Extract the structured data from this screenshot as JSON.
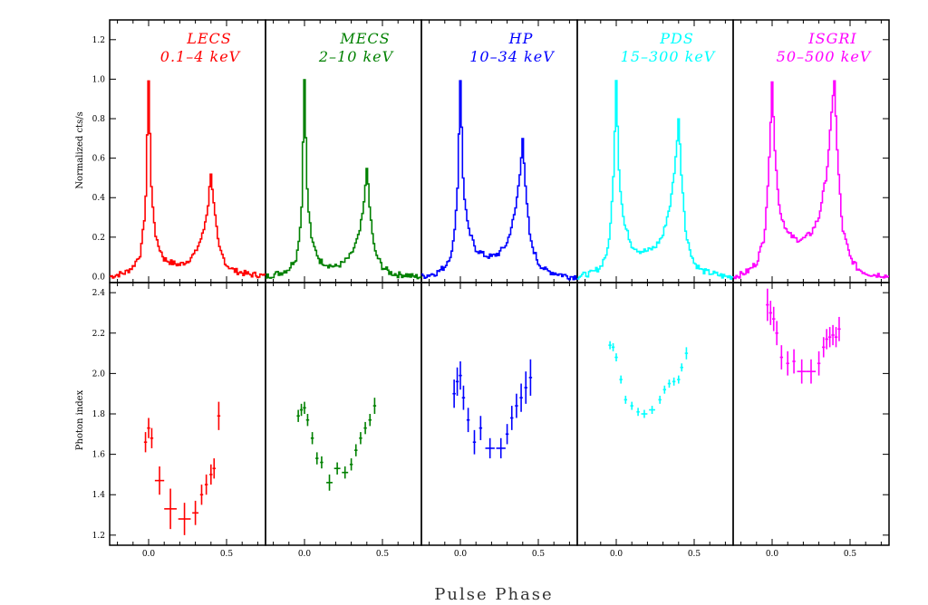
{
  "figure": {
    "xlabel": "Pulse Phase"
  },
  "chart_data": [
    {
      "type": "line",
      "role": "pulse-profiles",
      "ylabel": "Normalized cts/s",
      "ylim": [
        -0.03,
        1.3
      ],
      "xlim": [
        -0.25,
        0.75
      ],
      "xticks": [
        "0.0",
        "0.5"
      ],
      "yticks": [
        "0.0",
        "0.2",
        "0.4",
        "0.6",
        "0.8",
        "1.0",
        "1.2"
      ],
      "series": [
        {
          "name": "LECS",
          "band": "0.1–4 keV",
          "color": "#ff0000",
          "peak2_height": 0.53,
          "valley": 0.06,
          "x": [
            -0.25,
            -0.2,
            -0.15,
            -0.1,
            -0.05,
            -0.02,
            0.0,
            0.02,
            0.05,
            0.1,
            0.15,
            0.2,
            0.25,
            0.3,
            0.35,
            0.38,
            0.4,
            0.42,
            0.45,
            0.5,
            0.55,
            0.6,
            0.65,
            0.7,
            0.75
          ],
          "y": [
            0.0,
            0.01,
            0.02,
            0.05,
            0.12,
            0.35,
            1.0,
            0.4,
            0.18,
            0.09,
            0.07,
            0.06,
            0.08,
            0.12,
            0.22,
            0.35,
            0.53,
            0.35,
            0.15,
            0.06,
            0.03,
            0.02,
            0.01,
            0.01,
            0.0
          ]
        },
        {
          "name": "MECS",
          "band": "2–10 keV",
          "color": "#008000",
          "peak2_height": 0.56,
          "valley": 0.05,
          "x": [
            -0.25,
            -0.2,
            -0.15,
            -0.1,
            -0.05,
            -0.02,
            0.0,
            0.02,
            0.05,
            0.1,
            0.15,
            0.2,
            0.25,
            0.3,
            0.35,
            0.38,
            0.4,
            0.42,
            0.45,
            0.5,
            0.55,
            0.6,
            0.65,
            0.7,
            0.75
          ],
          "y": [
            0.0,
            0.01,
            0.02,
            0.04,
            0.1,
            0.3,
            1.0,
            0.38,
            0.17,
            0.08,
            0.06,
            0.05,
            0.07,
            0.11,
            0.21,
            0.35,
            0.56,
            0.33,
            0.13,
            0.05,
            0.02,
            0.01,
            0.01,
            0.0,
            0.0
          ]
        },
        {
          "name": "HP",
          "band": "10–34 keV",
          "color": "#0000ff",
          "peak2_height": 0.71,
          "valley": 0.1,
          "x": [
            -0.25,
            -0.2,
            -0.15,
            -0.1,
            -0.05,
            -0.02,
            0.0,
            0.02,
            0.05,
            0.1,
            0.15,
            0.2,
            0.25,
            0.3,
            0.35,
            0.38,
            0.4,
            0.42,
            0.45,
            0.5,
            0.55,
            0.6,
            0.65,
            0.7,
            0.75
          ],
          "y": [
            0.0,
            0.01,
            0.02,
            0.05,
            0.13,
            0.4,
            1.0,
            0.45,
            0.24,
            0.14,
            0.11,
            0.1,
            0.12,
            0.17,
            0.32,
            0.5,
            0.71,
            0.42,
            0.18,
            0.07,
            0.03,
            0.02,
            0.01,
            0.0,
            0.0
          ]
        },
        {
          "name": "PDS",
          "band": "15–300 keV",
          "color": "#00ffff",
          "peak2_height": 0.8,
          "valley": 0.13,
          "x": [
            -0.25,
            -0.2,
            -0.15,
            -0.1,
            -0.05,
            -0.02,
            0.0,
            0.02,
            0.05,
            0.1,
            0.15,
            0.2,
            0.25,
            0.3,
            0.35,
            0.38,
            0.4,
            0.42,
            0.45,
            0.5,
            0.55,
            0.6,
            0.65,
            0.7,
            0.75
          ],
          "y": [
            0.0,
            0.01,
            0.02,
            0.05,
            0.14,
            0.45,
            1.0,
            0.5,
            0.27,
            0.16,
            0.13,
            0.13,
            0.15,
            0.21,
            0.38,
            0.58,
            0.8,
            0.5,
            0.2,
            0.07,
            0.03,
            0.02,
            0.01,
            0.0,
            0.0
          ]
        },
        {
          "name": "ISGRI",
          "band": "50–500 keV",
          "color": "#ff00ff",
          "peak2_height": 1.0,
          "valley": 0.19,
          "x": [
            -0.25,
            -0.2,
            -0.15,
            -0.1,
            -0.05,
            -0.02,
            0.0,
            0.02,
            0.05,
            0.1,
            0.15,
            0.2,
            0.25,
            0.3,
            0.35,
            0.38,
            0.4,
            0.42,
            0.45,
            0.5,
            0.55,
            0.6,
            0.65,
            0.7,
            0.75
          ],
          "y": [
            0.0,
            0.01,
            0.03,
            0.07,
            0.2,
            0.55,
            1.0,
            0.6,
            0.33,
            0.22,
            0.19,
            0.19,
            0.22,
            0.3,
            0.52,
            0.8,
            1.0,
            0.6,
            0.25,
            0.1,
            0.04,
            0.02,
            0.01,
            0.01,
            0.0
          ]
        }
      ]
    },
    {
      "type": "scatter",
      "role": "photon-index",
      "ylabel": "Photon index",
      "ylim": [
        1.15,
        2.45
      ],
      "xlim": [
        -0.25,
        0.75
      ],
      "xticks": [
        "0.0",
        "0.5"
      ],
      "yticks": [
        "1.2",
        "1.4",
        "1.6",
        "1.8",
        "2.0",
        "2.2",
        "2.4"
      ],
      "series": [
        {
          "name": "LECS",
          "color": "#ff0000",
          "points": [
            {
              "x": -0.02,
              "y": 1.66,
              "xe": 0.01,
              "ye": 0.05
            },
            {
              "x": 0.0,
              "y": 1.73,
              "xe": 0.01,
              "ye": 0.05
            },
            {
              "x": 0.02,
              "y": 1.68,
              "xe": 0.01,
              "ye": 0.05
            },
            {
              "x": 0.07,
              "y": 1.47,
              "xe": 0.03,
              "ye": 0.07
            },
            {
              "x": 0.14,
              "y": 1.33,
              "xe": 0.04,
              "ye": 0.1
            },
            {
              "x": 0.23,
              "y": 1.28,
              "xe": 0.04,
              "ye": 0.08
            },
            {
              "x": 0.3,
              "y": 1.31,
              "xe": 0.02,
              "ye": 0.06
            },
            {
              "x": 0.34,
              "y": 1.4,
              "xe": 0.01,
              "ye": 0.05
            },
            {
              "x": 0.37,
              "y": 1.45,
              "xe": 0.01,
              "ye": 0.05
            },
            {
              "x": 0.4,
              "y": 1.5,
              "xe": 0.01,
              "ye": 0.05
            },
            {
              "x": 0.42,
              "y": 1.53,
              "xe": 0.01,
              "ye": 0.05
            },
            {
              "x": 0.45,
              "y": 1.79,
              "xe": 0.01,
              "ye": 0.07
            }
          ]
        },
        {
          "name": "MECS",
          "color": "#008000",
          "points": [
            {
              "x": -0.04,
              "y": 1.79,
              "xe": 0.01,
              "ye": 0.03
            },
            {
              "x": -0.02,
              "y": 1.82,
              "xe": 0.01,
              "ye": 0.03
            },
            {
              "x": 0.0,
              "y": 1.83,
              "xe": 0.01,
              "ye": 0.03
            },
            {
              "x": 0.02,
              "y": 1.77,
              "xe": 0.01,
              "ye": 0.03
            },
            {
              "x": 0.05,
              "y": 1.68,
              "xe": 0.01,
              "ye": 0.03
            },
            {
              "x": 0.08,
              "y": 1.58,
              "xe": 0.01,
              "ye": 0.03
            },
            {
              "x": 0.11,
              "y": 1.56,
              "xe": 0.01,
              "ye": 0.03
            },
            {
              "x": 0.16,
              "y": 1.46,
              "xe": 0.02,
              "ye": 0.04
            },
            {
              "x": 0.21,
              "y": 1.53,
              "xe": 0.02,
              "ye": 0.03
            },
            {
              "x": 0.26,
              "y": 1.51,
              "xe": 0.02,
              "ye": 0.03
            },
            {
              "x": 0.3,
              "y": 1.55,
              "xe": 0.01,
              "ye": 0.03
            },
            {
              "x": 0.33,
              "y": 1.62,
              "xe": 0.01,
              "ye": 0.03
            },
            {
              "x": 0.36,
              "y": 1.68,
              "xe": 0.01,
              "ye": 0.03
            },
            {
              "x": 0.39,
              "y": 1.73,
              "xe": 0.01,
              "ye": 0.03
            },
            {
              "x": 0.42,
              "y": 1.77,
              "xe": 0.01,
              "ye": 0.03
            },
            {
              "x": 0.45,
              "y": 1.84,
              "xe": 0.01,
              "ye": 0.04
            }
          ]
        },
        {
          "name": "HP",
          "color": "#0000ff",
          "points": [
            {
              "x": -0.04,
              "y": 1.9,
              "xe": 0.01,
              "ye": 0.07
            },
            {
              "x": -0.02,
              "y": 1.96,
              "xe": 0.01,
              "ye": 0.07
            },
            {
              "x": 0.0,
              "y": 1.99,
              "xe": 0.01,
              "ye": 0.07
            },
            {
              "x": 0.02,
              "y": 1.88,
              "xe": 0.01,
              "ye": 0.06
            },
            {
              "x": 0.05,
              "y": 1.77,
              "xe": 0.01,
              "ye": 0.06
            },
            {
              "x": 0.09,
              "y": 1.66,
              "xe": 0.01,
              "ye": 0.06
            },
            {
              "x": 0.13,
              "y": 1.73,
              "xe": 0.01,
              "ye": 0.06
            },
            {
              "x": 0.19,
              "y": 1.63,
              "xe": 0.03,
              "ye": 0.05
            },
            {
              "x": 0.26,
              "y": 1.63,
              "xe": 0.03,
              "ye": 0.05
            },
            {
              "x": 0.3,
              "y": 1.7,
              "xe": 0.01,
              "ye": 0.05
            },
            {
              "x": 0.33,
              "y": 1.78,
              "xe": 0.01,
              "ye": 0.06
            },
            {
              "x": 0.36,
              "y": 1.84,
              "xe": 0.01,
              "ye": 0.06
            },
            {
              "x": 0.39,
              "y": 1.88,
              "xe": 0.01,
              "ye": 0.07
            },
            {
              "x": 0.42,
              "y": 1.93,
              "xe": 0.01,
              "ye": 0.08
            },
            {
              "x": 0.45,
              "y": 1.98,
              "xe": 0.01,
              "ye": 0.09
            }
          ]
        },
        {
          "name": "PDS",
          "color": "#00ffff",
          "points": [
            {
              "x": -0.04,
              "y": 2.14,
              "xe": 0.01,
              "ye": 0.02
            },
            {
              "x": -0.02,
              "y": 2.13,
              "xe": 0.01,
              "ye": 0.02
            },
            {
              "x": 0.0,
              "y": 2.08,
              "xe": 0.01,
              "ye": 0.02
            },
            {
              "x": 0.03,
              "y": 1.97,
              "xe": 0.01,
              "ye": 0.02
            },
            {
              "x": 0.06,
              "y": 1.87,
              "xe": 0.01,
              "ye": 0.02
            },
            {
              "x": 0.1,
              "y": 1.84,
              "xe": 0.01,
              "ye": 0.02
            },
            {
              "x": 0.14,
              "y": 1.81,
              "xe": 0.01,
              "ye": 0.02
            },
            {
              "x": 0.18,
              "y": 1.8,
              "xe": 0.02,
              "ye": 0.02
            },
            {
              "x": 0.23,
              "y": 1.82,
              "xe": 0.02,
              "ye": 0.02
            },
            {
              "x": 0.28,
              "y": 1.87,
              "xe": 0.01,
              "ye": 0.02
            },
            {
              "x": 0.31,
              "y": 1.92,
              "xe": 0.01,
              "ye": 0.02
            },
            {
              "x": 0.34,
              "y": 1.95,
              "xe": 0.01,
              "ye": 0.02
            },
            {
              "x": 0.37,
              "y": 1.96,
              "xe": 0.01,
              "ye": 0.02
            },
            {
              "x": 0.4,
              "y": 1.97,
              "xe": 0.01,
              "ye": 0.02
            },
            {
              "x": 0.42,
              "y": 2.03,
              "xe": 0.01,
              "ye": 0.02
            },
            {
              "x": 0.45,
              "y": 2.1,
              "xe": 0.01,
              "ye": 0.03
            }
          ]
        },
        {
          "name": "ISGRI",
          "color": "#ff00ff",
          "points": [
            {
              "x": -0.03,
              "y": 2.34,
              "xe": 0.01,
              "ye": 0.08
            },
            {
              "x": -0.01,
              "y": 2.3,
              "xe": 0.01,
              "ye": 0.06
            },
            {
              "x": 0.01,
              "y": 2.27,
              "xe": 0.01,
              "ye": 0.06
            },
            {
              "x": 0.03,
              "y": 2.2,
              "xe": 0.01,
              "ye": 0.06
            },
            {
              "x": 0.06,
              "y": 2.08,
              "xe": 0.01,
              "ye": 0.06
            },
            {
              "x": 0.1,
              "y": 2.05,
              "xe": 0.01,
              "ye": 0.06
            },
            {
              "x": 0.14,
              "y": 2.06,
              "xe": 0.01,
              "ye": 0.06
            },
            {
              "x": 0.19,
              "y": 2.01,
              "xe": 0.03,
              "ye": 0.06
            },
            {
              "x": 0.25,
              "y": 2.01,
              "xe": 0.03,
              "ye": 0.06
            },
            {
              "x": 0.3,
              "y": 2.05,
              "xe": 0.01,
              "ye": 0.06
            },
            {
              "x": 0.33,
              "y": 2.13,
              "xe": 0.01,
              "ye": 0.05
            },
            {
              "x": 0.35,
              "y": 2.17,
              "xe": 0.01,
              "ye": 0.05
            },
            {
              "x": 0.37,
              "y": 2.18,
              "xe": 0.01,
              "ye": 0.05
            },
            {
              "x": 0.39,
              "y": 2.19,
              "xe": 0.01,
              "ye": 0.05
            },
            {
              "x": 0.41,
              "y": 2.18,
              "xe": 0.01,
              "ye": 0.05
            },
            {
              "x": 0.43,
              "y": 2.22,
              "xe": 0.01,
              "ye": 0.06
            }
          ]
        }
      ]
    }
  ]
}
